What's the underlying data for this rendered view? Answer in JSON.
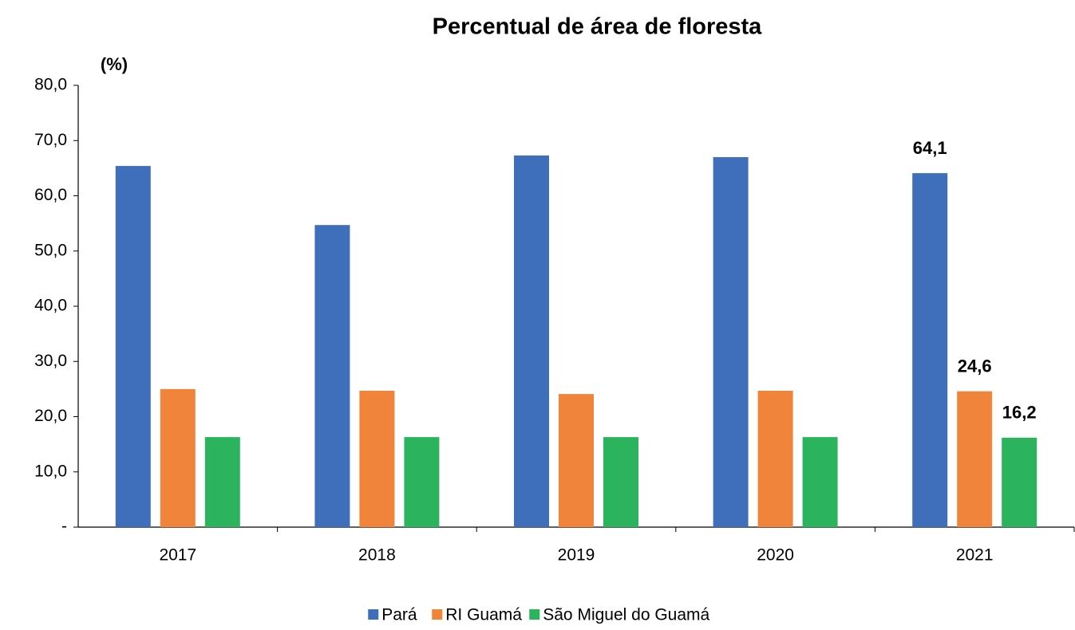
{
  "chart_data": {
    "type": "bar",
    "title": "Percentual de área de floresta",
    "y_label": "(%)",
    "categories": [
      "2017",
      "2018",
      "2019",
      "2020",
      "2021"
    ],
    "series": [
      {
        "name": "Pará",
        "color": "#3f6fba",
        "values": [
          65.4,
          54.7,
          67.3,
          67.0,
          64.1
        ],
        "value_labels": [
          null,
          null,
          null,
          null,
          "64,1"
        ]
      },
      {
        "name": "RI Guamá",
        "color": "#f0843a",
        "values": [
          25.0,
          24.7,
          24.1,
          24.7,
          24.6
        ],
        "value_labels": [
          null,
          null,
          null,
          null,
          "24,6"
        ]
      },
      {
        "name": "São Miguel do Guamá",
        "color": "#2bb35e",
        "values": [
          16.3,
          16.3,
          16.3,
          16.3,
          16.2
        ],
        "value_labels": [
          null,
          null,
          null,
          null,
          "16,2"
        ]
      }
    ],
    "ylim": [
      0,
      80
    ],
    "yticks": [
      {
        "value": 0,
        "label": "-"
      },
      {
        "value": 10,
        "label": "10,0"
      },
      {
        "value": 20,
        "label": "20,0"
      },
      {
        "value": 30,
        "label": "30,0"
      },
      {
        "value": 40,
        "label": "40,0"
      },
      {
        "value": 50,
        "label": "50,0"
      },
      {
        "value": 60,
        "label": "60,0"
      },
      {
        "value": 70,
        "label": "70,0"
      },
      {
        "value": 80,
        "label": "80,0"
      }
    ],
    "legend": "bottom"
  }
}
